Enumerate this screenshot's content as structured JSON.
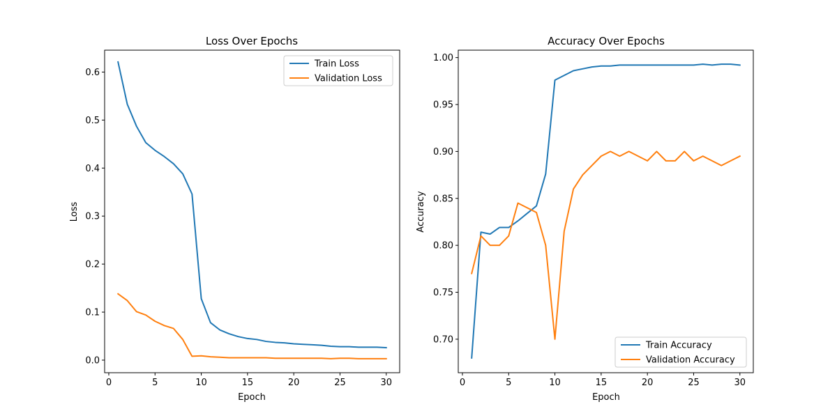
{
  "colors": {
    "series_blue": "#1f77b4",
    "series_orange": "#ff7f0e",
    "axes": "#000000",
    "legend_border": "#cccccc"
  },
  "chart_data": [
    {
      "type": "line",
      "title": "Loss Over Epochs",
      "xlabel": "Epoch",
      "ylabel": "Loss",
      "xlim": [
        -0.45,
        31.45
      ],
      "ylim": [
        -0.0262,
        0.6456
      ],
      "xticks": [
        0,
        5,
        10,
        15,
        20,
        25,
        30
      ],
      "xtick_labels": [
        "0",
        "5",
        "10",
        "15",
        "20",
        "25",
        "30"
      ],
      "yticks": [
        0.0,
        0.1,
        0.2,
        0.3,
        0.4,
        0.5,
        0.6
      ],
      "ytick_labels": [
        "0.0",
        "0.1",
        "0.2",
        "0.3",
        "0.4",
        "0.5",
        "0.6"
      ],
      "grid": false,
      "legend_position": "upper right",
      "x": [
        1,
        2,
        3,
        4,
        5,
        6,
        7,
        8,
        9,
        10,
        11,
        12,
        13,
        14,
        15,
        16,
        17,
        18,
        19,
        20,
        21,
        22,
        23,
        24,
        25,
        26,
        27,
        28,
        29,
        30
      ],
      "series": [
        {
          "name": "Train Loss",
          "color": "#1f77b4",
          "values": [
            0.621,
            0.533,
            0.487,
            0.453,
            0.437,
            0.424,
            0.409,
            0.388,
            0.346,
            0.128,
            0.078,
            0.063,
            0.055,
            0.049,
            0.045,
            0.043,
            0.039,
            0.037,
            0.036,
            0.034,
            0.033,
            0.032,
            0.031,
            0.029,
            0.028,
            0.028,
            0.027,
            0.027,
            0.027,
            0.026
          ]
        },
        {
          "name": "Validation Loss",
          "color": "#ff7f0e",
          "values": [
            0.138,
            0.124,
            0.101,
            0.094,
            0.081,
            0.072,
            0.066,
            0.043,
            0.008,
            0.009,
            0.007,
            0.006,
            0.005,
            0.005,
            0.005,
            0.005,
            0.005,
            0.004,
            0.004,
            0.004,
            0.004,
            0.004,
            0.004,
            0.003,
            0.004,
            0.004,
            0.003,
            0.003,
            0.003,
            0.003
          ]
        }
      ]
    },
    {
      "type": "line",
      "title": "Accuracy Over Epochs",
      "xlabel": "Epoch",
      "ylabel": "Accuracy",
      "xlim": [
        -0.45,
        31.45
      ],
      "ylim": [
        0.6643,
        1.0079
      ],
      "xticks": [
        0,
        5,
        10,
        15,
        20,
        25,
        30
      ],
      "xtick_labels": [
        "0",
        "5",
        "10",
        "15",
        "20",
        "25",
        "30"
      ],
      "yticks": [
        0.7,
        0.75,
        0.8,
        0.85,
        0.9,
        0.95,
        1.0
      ],
      "ytick_labels": [
        "0.70",
        "0.75",
        "0.80",
        "0.85",
        "0.90",
        "0.95",
        "1.00"
      ],
      "grid": false,
      "legend_position": "lower right",
      "x": [
        1,
        2,
        3,
        4,
        5,
        6,
        7,
        8,
        9,
        10,
        11,
        12,
        13,
        14,
        15,
        16,
        17,
        18,
        19,
        20,
        21,
        22,
        23,
        24,
        25,
        26,
        27,
        28,
        29,
        30
      ],
      "series": [
        {
          "name": "Train Accuracy",
          "color": "#1f77b4",
          "values": [
            0.68,
            0.814,
            0.812,
            0.819,
            0.819,
            0.826,
            0.834,
            0.842,
            0.876,
            0.976,
            0.981,
            0.986,
            0.988,
            0.99,
            0.991,
            0.991,
            0.992,
            0.992,
            0.992,
            0.992,
            0.992,
            0.992,
            0.992,
            0.992,
            0.992,
            0.993,
            0.992,
            0.993,
            0.993,
            0.992
          ]
        },
        {
          "name": "Validation Accuracy",
          "color": "#ff7f0e",
          "values": [
            0.77,
            0.81,
            0.8,
            0.8,
            0.81,
            0.845,
            0.84,
            0.835,
            0.8,
            0.7,
            0.815,
            0.86,
            0.875,
            0.885,
            0.895,
            0.9,
            0.895,
            0.9,
            0.895,
            0.89,
            0.9,
            0.89,
            0.89,
            0.9,
            0.89,
            0.895,
            0.89,
            0.885,
            0.89,
            0.895
          ]
        }
      ]
    }
  ]
}
